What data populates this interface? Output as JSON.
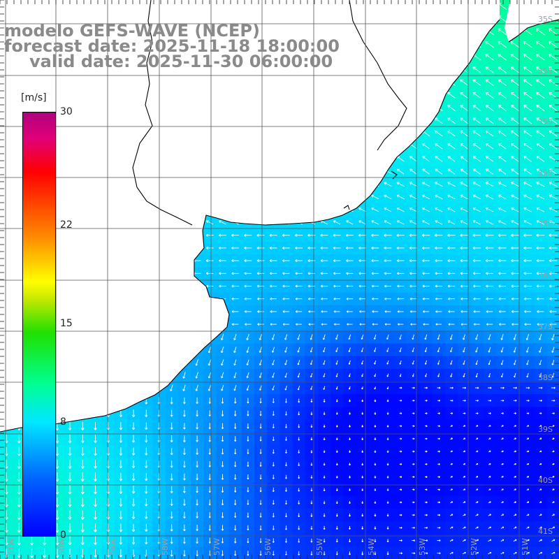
{
  "title": {
    "line1": "modelo GEFS-WAVE (NCEP)",
    "line2": "forecast date: 2025-11-18 18:00:00",
    "line3": "valid date: 2025-11-30 06:00:00"
  },
  "colorbar": {
    "unit": "[m/s]",
    "ticks": [
      {
        "label": "30",
        "value": 30
      },
      {
        "label": "22",
        "value": 22
      },
      {
        "label": "15",
        "value": 15
      },
      {
        "label": "8",
        "value": 8
      },
      {
        "label": "0",
        "value": 0
      }
    ],
    "colors": [
      "#0000ff",
      "#0060ff",
      "#00e8ff",
      "#00ff90",
      "#20e000",
      "#ffff00",
      "#ff9000",
      "#ff0000",
      "#b0007e"
    ]
  },
  "map": {
    "lat_labels": [
      "35S",
      "35S",
      "35S",
      "35S",
      "35S",
      "36S",
      "37S",
      "38S",
      "39S",
      "40S",
      "41S"
    ],
    "lon_labels": [
      "61W",
      "60W",
      "59W",
      "58W",
      "57W",
      "56W",
      "55W",
      "54W",
      "53W",
      "52W",
      "51W"
    ],
    "land_color": "#ffffff",
    "grid_color": "#555555",
    "arrow_color": "#ffffff"
  }
}
